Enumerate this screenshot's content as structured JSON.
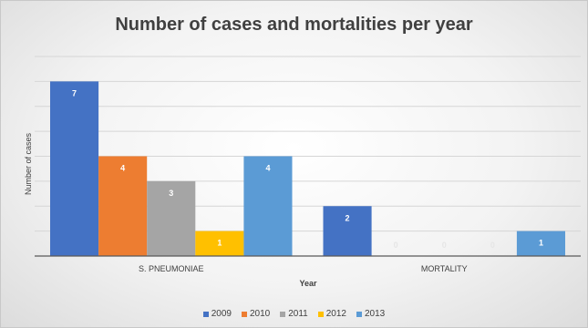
{
  "chart_data": {
    "type": "bar",
    "title": "Number of cases and mortalities per year",
    "xlabel": "Year",
    "ylabel": "Number of cases",
    "categories": [
      "S. PNEUMONIAE",
      "MORTALITY"
    ],
    "series": [
      {
        "name": "2009",
        "values": [
          7,
          2
        ],
        "color": "#4472c4"
      },
      {
        "name": "2010",
        "values": [
          4,
          0
        ],
        "color": "#ed7d31"
      },
      {
        "name": "2011",
        "values": [
          3,
          0
        ],
        "color": "#a5a5a5"
      },
      {
        "name": "2012",
        "values": [
          1,
          0
        ],
        "color": "#ffc000"
      },
      {
        "name": "2013",
        "values": [
          4,
          1
        ],
        "color": "#5b9bd5"
      }
    ],
    "ylim": [
      0,
      8
    ],
    "grid": true,
    "legend": "bottom"
  }
}
